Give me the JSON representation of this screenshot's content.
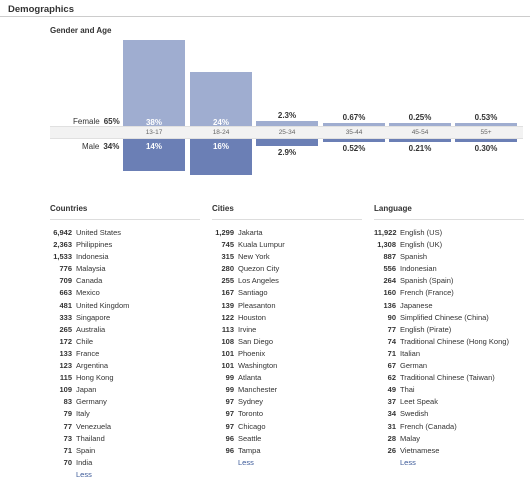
{
  "header": {
    "title": "Demographics"
  },
  "gender_age": {
    "title": "Gender and Age",
    "female": {
      "label": "Female",
      "pct": "65%"
    },
    "male": {
      "label": "Male",
      "pct": "34%"
    },
    "groups": [
      {
        "age": "13-17",
        "female": "38%",
        "male": "14%"
      },
      {
        "age": "18-24",
        "female": "24%",
        "male": "16%"
      },
      {
        "age": "25-34",
        "female": "2.3%",
        "male": "2.9%"
      },
      {
        "age": "35-44",
        "female": "0.67%",
        "male": "0.52%"
      },
      {
        "age": "45-54",
        "female": "0.25%",
        "male": "0.21%"
      },
      {
        "age": "55+",
        "female": "0.53%",
        "male": "0.30%"
      }
    ]
  },
  "countries": {
    "title": "Countries",
    "items": [
      {
        "count": "6,942",
        "name": "United States"
      },
      {
        "count": "2,363",
        "name": "Philippines"
      },
      {
        "count": "1,533",
        "name": "Indonesia"
      },
      {
        "count": "776",
        "name": "Malaysia"
      },
      {
        "count": "709",
        "name": "Canada"
      },
      {
        "count": "663",
        "name": "Mexico"
      },
      {
        "count": "481",
        "name": "United Kingdom"
      },
      {
        "count": "333",
        "name": "Singapore"
      },
      {
        "count": "265",
        "name": "Australia"
      },
      {
        "count": "172",
        "name": "Chile"
      },
      {
        "count": "133",
        "name": "France"
      },
      {
        "count": "123",
        "name": "Argentina"
      },
      {
        "count": "115",
        "name": "Hong Kong"
      },
      {
        "count": "109",
        "name": "Japan"
      },
      {
        "count": "83",
        "name": "Germany"
      },
      {
        "count": "79",
        "name": "Italy"
      },
      {
        "count": "77",
        "name": "Venezuela"
      },
      {
        "count": "73",
        "name": "Thailand"
      },
      {
        "count": "71",
        "name": "Spain"
      },
      {
        "count": "70",
        "name": "India"
      }
    ],
    "less": "Less"
  },
  "cities": {
    "title": "Cities",
    "items": [
      {
        "count": "1,299",
        "name": "Jakarta"
      },
      {
        "count": "745",
        "name": "Kuala Lumpur"
      },
      {
        "count": "315",
        "name": "New York"
      },
      {
        "count": "280",
        "name": "Quezon City"
      },
      {
        "count": "255",
        "name": "Los Angeles"
      },
      {
        "count": "167",
        "name": "Santiago"
      },
      {
        "count": "139",
        "name": "Pleasanton"
      },
      {
        "count": "122",
        "name": "Houston"
      },
      {
        "count": "113",
        "name": "Irvine"
      },
      {
        "count": "108",
        "name": "San Diego"
      },
      {
        "count": "101",
        "name": "Phoenix"
      },
      {
        "count": "101",
        "name": "Washington"
      },
      {
        "count": "99",
        "name": "Atlanta"
      },
      {
        "count": "99",
        "name": "Manchester"
      },
      {
        "count": "97",
        "name": "Sydney"
      },
      {
        "count": "97",
        "name": "Toronto"
      },
      {
        "count": "97",
        "name": "Chicago"
      },
      {
        "count": "96",
        "name": "Seattle"
      },
      {
        "count": "96",
        "name": "Tampa"
      }
    ],
    "less": "Less"
  },
  "languages": {
    "title": "Language",
    "items": [
      {
        "count": "11,922",
        "name": "English (US)"
      },
      {
        "count": "1,308",
        "name": "English (UK)"
      },
      {
        "count": "887",
        "name": "Spanish"
      },
      {
        "count": "556",
        "name": "Indonesian"
      },
      {
        "count": "264",
        "name": "Spanish (Spain)"
      },
      {
        "count": "160",
        "name": "French (France)"
      },
      {
        "count": "136",
        "name": "Japanese"
      },
      {
        "count": "90",
        "name": "Simplified Chinese (China)"
      },
      {
        "count": "77",
        "name": "English (Pirate)"
      },
      {
        "count": "74",
        "name": "Traditional Chinese (Hong Kong)"
      },
      {
        "count": "71",
        "name": "Italian"
      },
      {
        "count": "67",
        "name": "German"
      },
      {
        "count": "62",
        "name": "Traditional Chinese (Taiwan)"
      },
      {
        "count": "49",
        "name": "Thai"
      },
      {
        "count": "37",
        "name": "Leet Speak"
      },
      {
        "count": "34",
        "name": "Swedish"
      },
      {
        "count": "31",
        "name": "French (Canada)"
      },
      {
        "count": "28",
        "name": "Malay"
      },
      {
        "count": "26",
        "name": "Vietnamese"
      }
    ],
    "less": "Less"
  },
  "colors": {
    "female_bar": "#9fadd0",
    "male_bar": "#6b7fb5",
    "link": "#3b5998"
  }
}
